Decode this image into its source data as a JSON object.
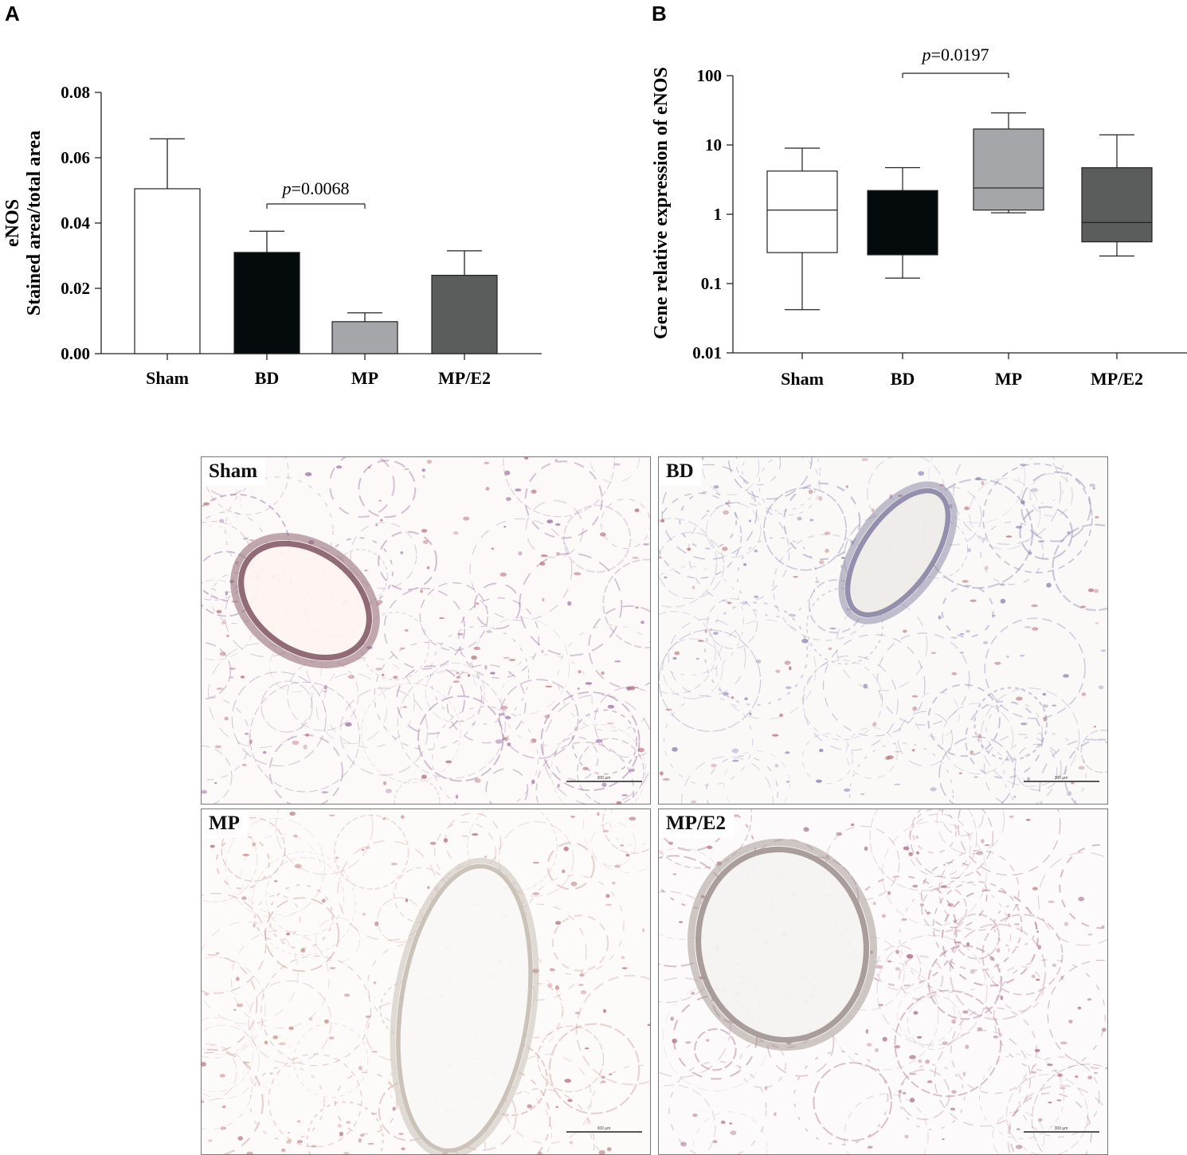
{
  "panel_a_letter": "A",
  "panel_b_letter": "B",
  "chart_data": [
    {
      "type": "bar",
      "panel": "A",
      "ylabel_line1": "eNOS",
      "ylabel_line2": "Stained area/total area",
      "categories": [
        "Sham",
        "BD",
        "MP",
        "MP/E2"
      ],
      "values": [
        0.0505,
        0.031,
        0.0098,
        0.024
      ],
      "errors": [
        0.0153,
        0.0065,
        0.0027,
        0.0075
      ],
      "colors": [
        "#ffffff",
        "#050a0d",
        "#a4a6a9",
        "#5b5d5d"
      ],
      "ylim": [
        0,
        0.08
      ],
      "yticks": [
        "0.00",
        "0.02",
        "0.04",
        "0.06",
        "0.08"
      ],
      "annotation": {
        "prefix": "p",
        "text": "=0.0068",
        "from": "BD",
        "to": "MP"
      }
    },
    {
      "type": "box",
      "panel": "B",
      "ylabel": "Gene relative expression of eNOS",
      "yscale": "log",
      "categories": [
        "Sham",
        "BD",
        "MP",
        "MP/E2"
      ],
      "boxes": [
        {
          "min": 0.042,
          "q1": 0.28,
          "median": 1.15,
          "q3": 4.2,
          "max": 9.0
        },
        {
          "min": 0.12,
          "q1": 0.26,
          "median": 0.26,
          "q3": 2.2,
          "max": 4.7
        },
        {
          "min": 1.05,
          "q1": 1.15,
          "median": 2.4,
          "q3": 17.0,
          "max": 29.0
        },
        {
          "min": 0.25,
          "q1": 0.4,
          "median": 0.76,
          "q3": 4.7,
          "max": 14.0
        }
      ],
      "colors": [
        "#ffffff",
        "#050a0d",
        "#a4a6a9",
        "#5b5d5d"
      ],
      "ylim": [
        0.01,
        100
      ],
      "yticks": [
        "0.01",
        "0.1",
        "1",
        "10",
        "100"
      ],
      "annotation": {
        "prefix": "p",
        "text": "=0.0197",
        "from": "BD",
        "to": "MP"
      }
    }
  ],
  "micrographs": [
    {
      "label": "Sham",
      "scale_text": "300 µm"
    },
    {
      "label": "BD",
      "scale_text": "300 µm"
    },
    {
      "label": "MP",
      "scale_text": "300 µm"
    },
    {
      "label": "MP/E2",
      "scale_text": "300 µm"
    }
  ]
}
